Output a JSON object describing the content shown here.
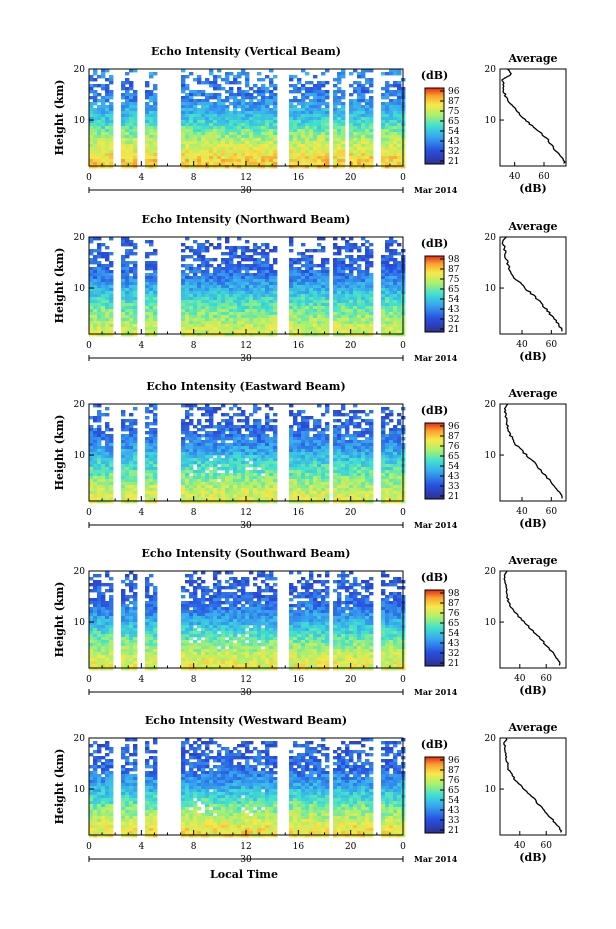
{
  "figure": {
    "xlabel": "Local Time",
    "date_center_label": "30",
    "date_right_label": "Mar 2014",
    "ylabel": "Height (km)",
    "colorbar_unit": "(dB)",
    "avg_title": "Average",
    "avg_xlabel": "(dB)"
  },
  "chart_data": [
    {
      "type": "heatmap",
      "title": "Echo Intensity (Vertical Beam)",
      "xlabel": "",
      "ylabel": "Height (km)",
      "x_ticks": [
        "0",
        "4",
        "8",
        "12",
        "16",
        "20",
        "0"
      ],
      "y_ticks": [
        "10",
        "20"
      ],
      "xlim": [
        0,
        24
      ],
      "ylim": [
        1,
        20
      ],
      "colorbar_ticks": [
        "96",
        "87",
        "75",
        "65",
        "54",
        "43",
        "32",
        "21"
      ],
      "colorbar_range": [
        21,
        96
      ],
      "data_gaps_hours": [
        [
          1.7,
          2.3
        ],
        [
          3.8,
          4.3
        ],
        [
          5.3,
          7.0
        ],
        [
          14.5,
          15.4
        ],
        [
          18.3,
          18.7
        ],
        [
          19.5,
          20.0
        ],
        [
          21.8,
          22.3
        ]
      ],
      "profile": {
        "title": "Average",
        "xlabel": "(dB)",
        "x_ticks": [
          "40",
          "60"
        ],
        "xlim": [
          30,
          75
        ],
        "heights": [
          2,
          4,
          6,
          8,
          10,
          12,
          14,
          16,
          18,
          19,
          20
        ],
        "values": [
          74,
          68,
          63,
          56,
          47,
          41,
          35,
          32,
          32,
          38,
          35
        ]
      }
    },
    {
      "type": "heatmap",
      "title": "Echo Intensity (Northward Beam)",
      "xlabel": "",
      "ylabel": "Height (km)",
      "x_ticks": [
        "0",
        "4",
        "8",
        "12",
        "16",
        "20",
        "0"
      ],
      "y_ticks": [
        "10",
        "20"
      ],
      "xlim": [
        0,
        24
      ],
      "ylim": [
        1,
        20
      ],
      "colorbar_ticks": [
        "98",
        "87",
        "75",
        "65",
        "54",
        "43",
        "32",
        "21"
      ],
      "colorbar_range": [
        21,
        98
      ],
      "data_gaps_hours": [
        [
          1.7,
          2.3
        ],
        [
          3.8,
          4.3
        ],
        [
          5.3,
          7.0
        ],
        [
          14.5,
          15.4
        ],
        [
          18.3,
          18.7
        ],
        [
          21.8,
          22.3
        ]
      ],
      "profile": {
        "title": "Average",
        "xlabel": "(dB)",
        "x_ticks": [
          "40",
          "60"
        ],
        "xlim": [
          25,
          70
        ],
        "heights": [
          2,
          4,
          6,
          8,
          10,
          12,
          14,
          16,
          18,
          19,
          20
        ],
        "values": [
          67,
          62,
          56,
          50,
          42,
          35,
          31,
          29,
          28,
          27,
          29
        ]
      }
    },
    {
      "type": "heatmap",
      "title": "Echo Intensity (Eastward Beam)",
      "xlabel": "",
      "ylabel": "Height (km)",
      "x_ticks": [
        "0",
        "4",
        "8",
        "12",
        "16",
        "20",
        "0"
      ],
      "y_ticks": [
        "10",
        "20"
      ],
      "xlim": [
        0,
        24
      ],
      "ylim": [
        1,
        20
      ],
      "colorbar_ticks": [
        "96",
        "87",
        "76",
        "65",
        "54",
        "43",
        "33",
        "21"
      ],
      "colorbar_range": [
        21,
        96
      ],
      "data_gaps_hours": [
        [
          1.7,
          2.3
        ],
        [
          3.8,
          4.3
        ],
        [
          5.3,
          7.0
        ],
        [
          14.5,
          15.4
        ],
        [
          18.3,
          18.7
        ],
        [
          21.8,
          22.3
        ]
      ],
      "profile": {
        "title": "Average",
        "xlabel": "(dB)",
        "x_ticks": [
          "40",
          "60"
        ],
        "xlim": [
          25,
          70
        ],
        "heights": [
          2,
          4,
          6,
          8,
          10,
          12,
          14,
          16,
          18,
          19,
          20
        ],
        "values": [
          67,
          62,
          56,
          50,
          43,
          36,
          32,
          30,
          29,
          28,
          30
        ]
      }
    },
    {
      "type": "heatmap",
      "title": "Echo Intensity (Southward Beam)",
      "xlabel": "",
      "ylabel": "Height (km)",
      "x_ticks": [
        "0",
        "4",
        "8",
        "12",
        "16",
        "20",
        "0"
      ],
      "y_ticks": [
        "10",
        "20"
      ],
      "xlim": [
        0,
        24
      ],
      "ylim": [
        1,
        20
      ],
      "colorbar_ticks": [
        "98",
        "87",
        "76",
        "65",
        "54",
        "43",
        "32",
        "21"
      ],
      "colorbar_range": [
        21,
        98
      ],
      "data_gaps_hours": [
        [
          1.7,
          2.3
        ],
        [
          3.8,
          4.3
        ],
        [
          5.3,
          7.0
        ],
        [
          14.5,
          15.4
        ],
        [
          18.3,
          18.7
        ],
        [
          21.8,
          22.3
        ]
      ],
      "profile": {
        "title": "Average",
        "xlabel": "(dB)",
        "x_ticks": [
          "40",
          "60"
        ],
        "xlim": [
          25,
          75
        ],
        "heights": [
          2,
          4,
          6,
          8,
          10,
          12,
          14,
          16,
          18,
          19,
          20
        ],
        "values": [
          70,
          65,
          58,
          51,
          43,
          36,
          31,
          30,
          29,
          28,
          30
        ]
      }
    },
    {
      "type": "heatmap",
      "title": "Echo Intensity (Westward Beam)",
      "xlabel": "",
      "ylabel": "Height (km)",
      "x_ticks": [
        "0",
        "4",
        "8",
        "12",
        "16",
        "20",
        "0"
      ],
      "y_ticks": [
        "10",
        "20"
      ],
      "xlim": [
        0,
        24
      ],
      "ylim": [
        1,
        20
      ],
      "colorbar_ticks": [
        "96",
        "87",
        "76",
        "65",
        "54",
        "43",
        "33",
        "21"
      ],
      "colorbar_range": [
        21,
        96
      ],
      "data_gaps_hours": [
        [
          1.7,
          2.3
        ],
        [
          3.8,
          4.3
        ],
        [
          5.3,
          7.0
        ],
        [
          14.5,
          15.4
        ],
        [
          18.3,
          18.7
        ],
        [
          21.8,
          22.3
        ]
      ],
      "profile": {
        "title": "Average",
        "xlabel": "(dB)",
        "x_ticks": [
          "40",
          "60"
        ],
        "xlim": [
          25,
          75
        ],
        "heights": [
          2,
          4,
          6,
          8,
          10,
          12,
          14,
          16,
          18,
          19,
          20
        ],
        "values": [
          71,
          65,
          58,
          51,
          43,
          36,
          31,
          30,
          29,
          28,
          30
        ]
      }
    }
  ]
}
